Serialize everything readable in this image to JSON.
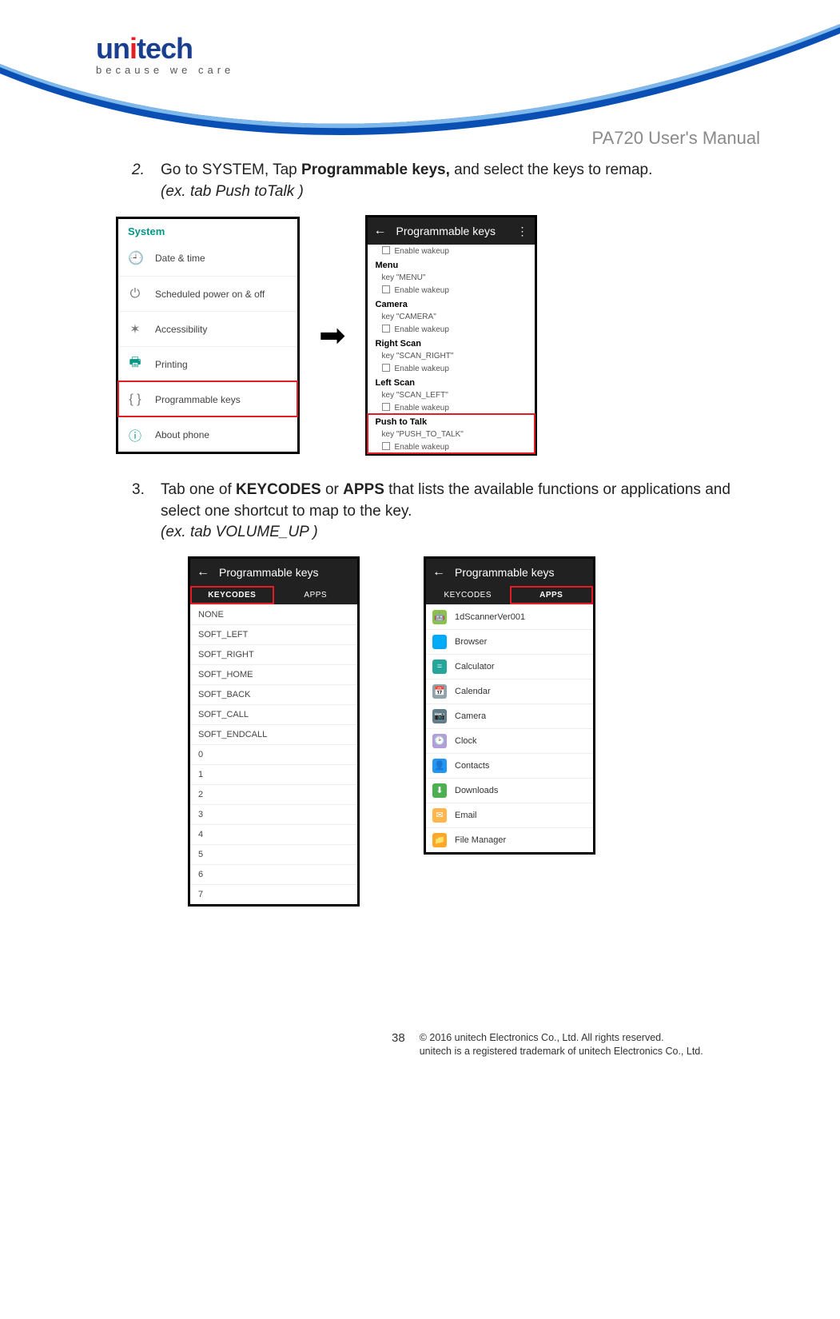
{
  "header": {
    "logo_main": "unitech",
    "tagline": "because we care",
    "manual_title": "PA720 User's Manual",
    "dot_color": "#e31e24",
    "logo_color": "#1b3f8f",
    "swoosh_color": "#0a4fb3"
  },
  "step2": {
    "num": "2.",
    "text_pre": "Go to SYSTEM, Tap ",
    "bold": "Programmable keys,",
    "text_post": " and select the keys to remap.",
    "example": "(ex. tab Push toTalk )"
  },
  "system_shot": {
    "section": "System",
    "rows": [
      {
        "icon": "clock-icon",
        "glyph": "🕘",
        "label": "Date & time",
        "color": "#757575"
      },
      {
        "icon": "power-icon",
        "glyph": "⏻",
        "label": "Scheduled power on & off",
        "color": "#757575"
      },
      {
        "icon": "accessibility-icon",
        "glyph": "✶",
        "label": "Accessibility",
        "color": "#757575"
      },
      {
        "icon": "print-icon",
        "glyph": "🖶",
        "label": "Printing",
        "color": "#009688"
      },
      {
        "icon": "keys-icon",
        "glyph": "{ }",
        "label": "Programmable keys",
        "color": "#757575",
        "highlight": true
      },
      {
        "icon": "info-icon",
        "glyph": "ⓘ",
        "label": "About phone",
        "color": "#009688"
      }
    ]
  },
  "progkeys_shot": {
    "appbar": {
      "title": "Programmable keys"
    },
    "groups": [
      {
        "title": "",
        "key": "",
        "wakeup": "Enable wakeup"
      },
      {
        "title": "Menu",
        "key": "key \"MENU\"",
        "wakeup": "Enable wakeup"
      },
      {
        "title": "Camera",
        "key": "key \"CAMERA\"",
        "wakeup": "Enable wakeup"
      },
      {
        "title": "Right Scan",
        "key": "key \"SCAN_RIGHT\"",
        "wakeup": "Enable wakeup"
      },
      {
        "title": "Left Scan",
        "key": "key \"SCAN_LEFT\"",
        "wakeup": "Enable wakeup"
      },
      {
        "title": "Push to Talk",
        "key": "key \"PUSH_TO_TALK\"",
        "wakeup": "Enable wakeup",
        "highlight": true
      }
    ]
  },
  "step3": {
    "num": "3.",
    "text_pre": "Tab one of ",
    "bold1": "KEYCODES",
    "mid": " or ",
    "bold2": "APPS",
    "text_post": " that lists the available functions or applications and select one shortcut to map to the key.",
    "example": "(ex. tab VOLUME_UP )"
  },
  "keycodes_shot": {
    "appbar": {
      "title": "Programmable keys"
    },
    "tabs": {
      "left": "KEYCODES",
      "right": "APPS",
      "active": "left"
    },
    "items": [
      "NONE",
      "SOFT_LEFT",
      "SOFT_RIGHT",
      "SOFT_HOME",
      "SOFT_BACK",
      "SOFT_CALL",
      "SOFT_ENDCALL",
      "0",
      "1",
      "2",
      "3",
      "4",
      "5",
      "6",
      "7"
    ]
  },
  "apps_shot": {
    "appbar": {
      "title": "Programmable keys"
    },
    "tabs": {
      "left": "KEYCODES",
      "right": "APPS",
      "active": "right"
    },
    "items": [
      {
        "name": "1dScannerVer001",
        "color": "#8bc34a",
        "glyph": "🤖"
      },
      {
        "name": "Browser",
        "color": "#03a9f4",
        "glyph": "🌐"
      },
      {
        "name": "Calculator",
        "color": "#26a69a",
        "glyph": "="
      },
      {
        "name": "Calendar",
        "color": "#90a4ae",
        "glyph": "📅"
      },
      {
        "name": "Camera",
        "color": "#607d8b",
        "glyph": "📷"
      },
      {
        "name": "Clock",
        "color": "#b39ddb",
        "glyph": "🕑"
      },
      {
        "name": "Contacts",
        "color": "#2196f3",
        "glyph": "👤"
      },
      {
        "name": "Downloads",
        "color": "#4caf50",
        "glyph": "⬇"
      },
      {
        "name": "Email",
        "color": "#ffb74d",
        "glyph": "✉"
      },
      {
        "name": "File Manager",
        "color": "#ffa726",
        "glyph": "📁"
      }
    ]
  },
  "footer": {
    "page": "38",
    "line1": "© 2016 unitech Electronics Co., Ltd. All rights reserved.",
    "line2": "unitech is a registered trademark of unitech Electronics Co., Ltd."
  }
}
